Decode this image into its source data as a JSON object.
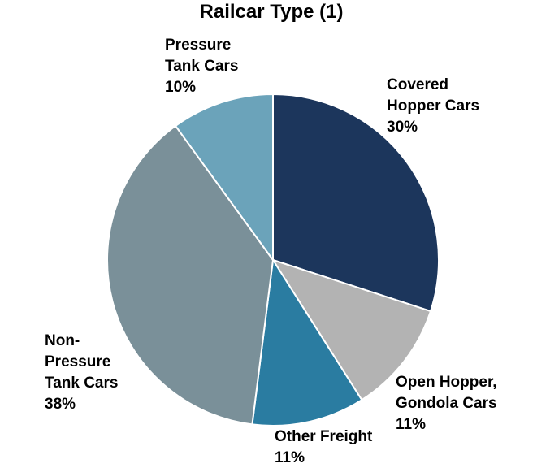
{
  "chart_data": {
    "type": "pie",
    "title": "Railcar Type (1)",
    "start_angle_deg": 0,
    "direction": "clockwise",
    "colors": {
      "covered_hopper": "#1c365c",
      "open_hopper": "#b3b3b3",
      "other_freight": "#2a7ca1",
      "non_pressure": "#7a9099",
      "pressure": "#6ba3ba",
      "edge": "#ffffff"
    },
    "slices": [
      {
        "key": "covered_hopper",
        "label_lines": [
          "Covered",
          "Hopper Cars"
        ],
        "percent_label": "30%",
        "value": 30
      },
      {
        "key": "open_hopper",
        "label_lines": [
          "Open Hopper,",
          "Gondola Cars"
        ],
        "percent_label": "11%",
        "value": 11
      },
      {
        "key": "other_freight",
        "label_lines": [
          "Other Freight"
        ],
        "percent_label": "11%",
        "value": 11
      },
      {
        "key": "non_pressure",
        "label_lines": [
          "Non-",
          "Pressure",
          "Tank Cars"
        ],
        "percent_label": "38%",
        "value": 38
      },
      {
        "key": "pressure",
        "label_lines": [
          "Pressure",
          "Tank Cars"
        ],
        "percent_label": "10%",
        "value": 10
      }
    ]
  }
}
